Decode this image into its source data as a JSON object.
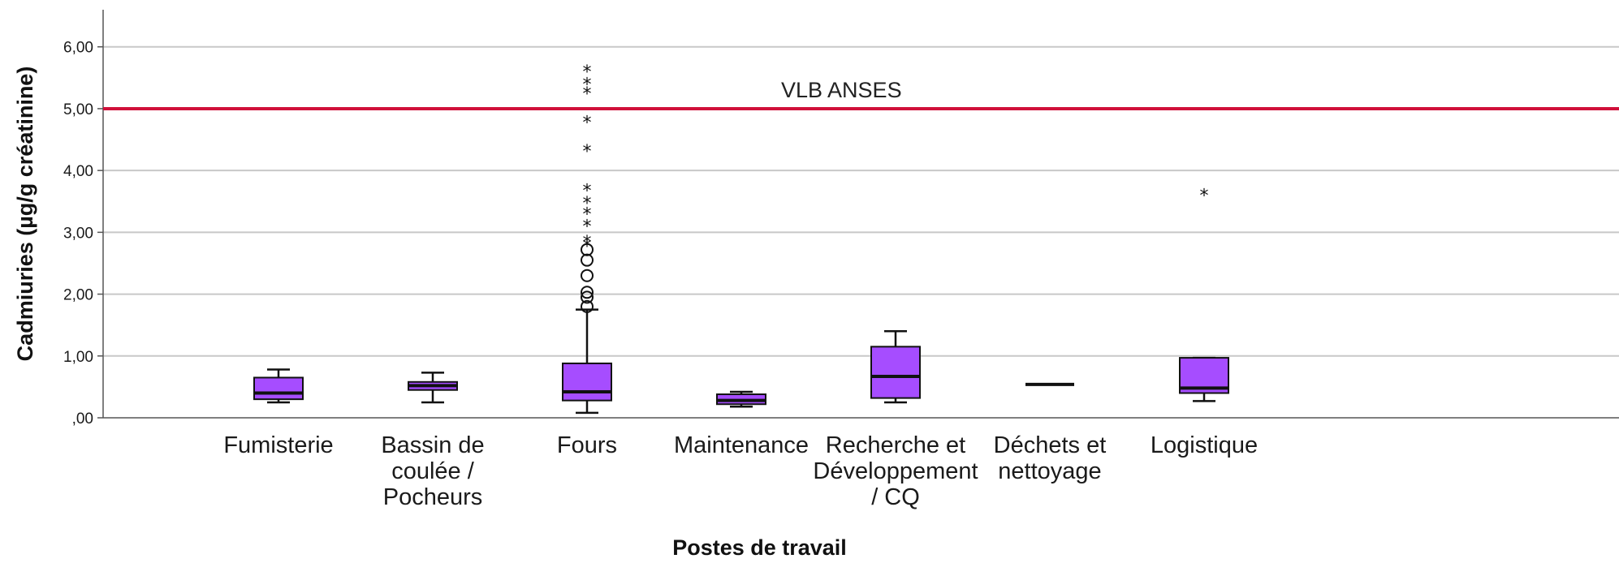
{
  "chart_data": {
    "type": "boxplot",
    "xlabel": "Postes de travail",
    "ylabel": "Cadmiuries (µg/g créatinine)",
    "ylim": [
      0,
      6.6
    ],
    "yticks": [
      0,
      1,
      2,
      3,
      4,
      5,
      6
    ],
    "ytick_labels": [
      ",00",
      "1,00",
      "2,00",
      "3,00",
      "4,00",
      "5,00",
      "6,00"
    ],
    "grid": "horizontal",
    "box_color": "#a64dff",
    "reference_line": {
      "value": 5.0,
      "label": "VLB ANSES",
      "color": "#d0103a"
    },
    "categories": [
      {
        "label": [
          "Fumisterie"
        ],
        "min": 0.25,
        "q1": 0.3,
        "median": 0.4,
        "q3": 0.65,
        "max": 0.78,
        "circles": [],
        "stars": []
      },
      {
        "label": [
          "Bassin de",
          "coulée /",
          "Pocheurs"
        ],
        "min": 0.25,
        "q1": 0.45,
        "median": 0.52,
        "q3": 0.58,
        "max": 0.73,
        "circles": [],
        "stars": []
      },
      {
        "label": [
          "Fours"
        ],
        "min": 0.08,
        "q1": 0.28,
        "median": 0.42,
        "q3": 0.88,
        "max": 1.75,
        "circles": [
          1.8,
          1.95,
          2.03,
          2.3,
          2.55,
          2.72
        ],
        "stars": [
          2.78,
          2.85,
          3.1,
          3.3,
          3.48,
          3.68,
          4.32,
          4.78,
          5.25,
          5.4,
          5.6
        ]
      },
      {
        "label": [
          "Maintenance"
        ],
        "min": 0.18,
        "q1": 0.22,
        "median": 0.28,
        "q3": 0.38,
        "max": 0.42,
        "circles": [],
        "stars": []
      },
      {
        "label": [
          "Recherche et",
          "Développement",
          "/ CQ"
        ],
        "min": 0.25,
        "q1": 0.32,
        "median": 0.67,
        "q3": 1.15,
        "max": 1.4,
        "circles": [],
        "stars": []
      },
      {
        "label": [
          "Déchets et",
          "nettoyage"
        ],
        "min": 0.54,
        "q1": 0.54,
        "median": 0.54,
        "q3": 0.54,
        "max": 0.54,
        "circles": [],
        "stars": []
      },
      {
        "label": [
          "Logistique"
        ],
        "min": 0.27,
        "q1": 0.4,
        "median": 0.48,
        "q3": 0.97,
        "max": 0.97,
        "circles": [],
        "stars": [
          3.6
        ]
      }
    ]
  }
}
